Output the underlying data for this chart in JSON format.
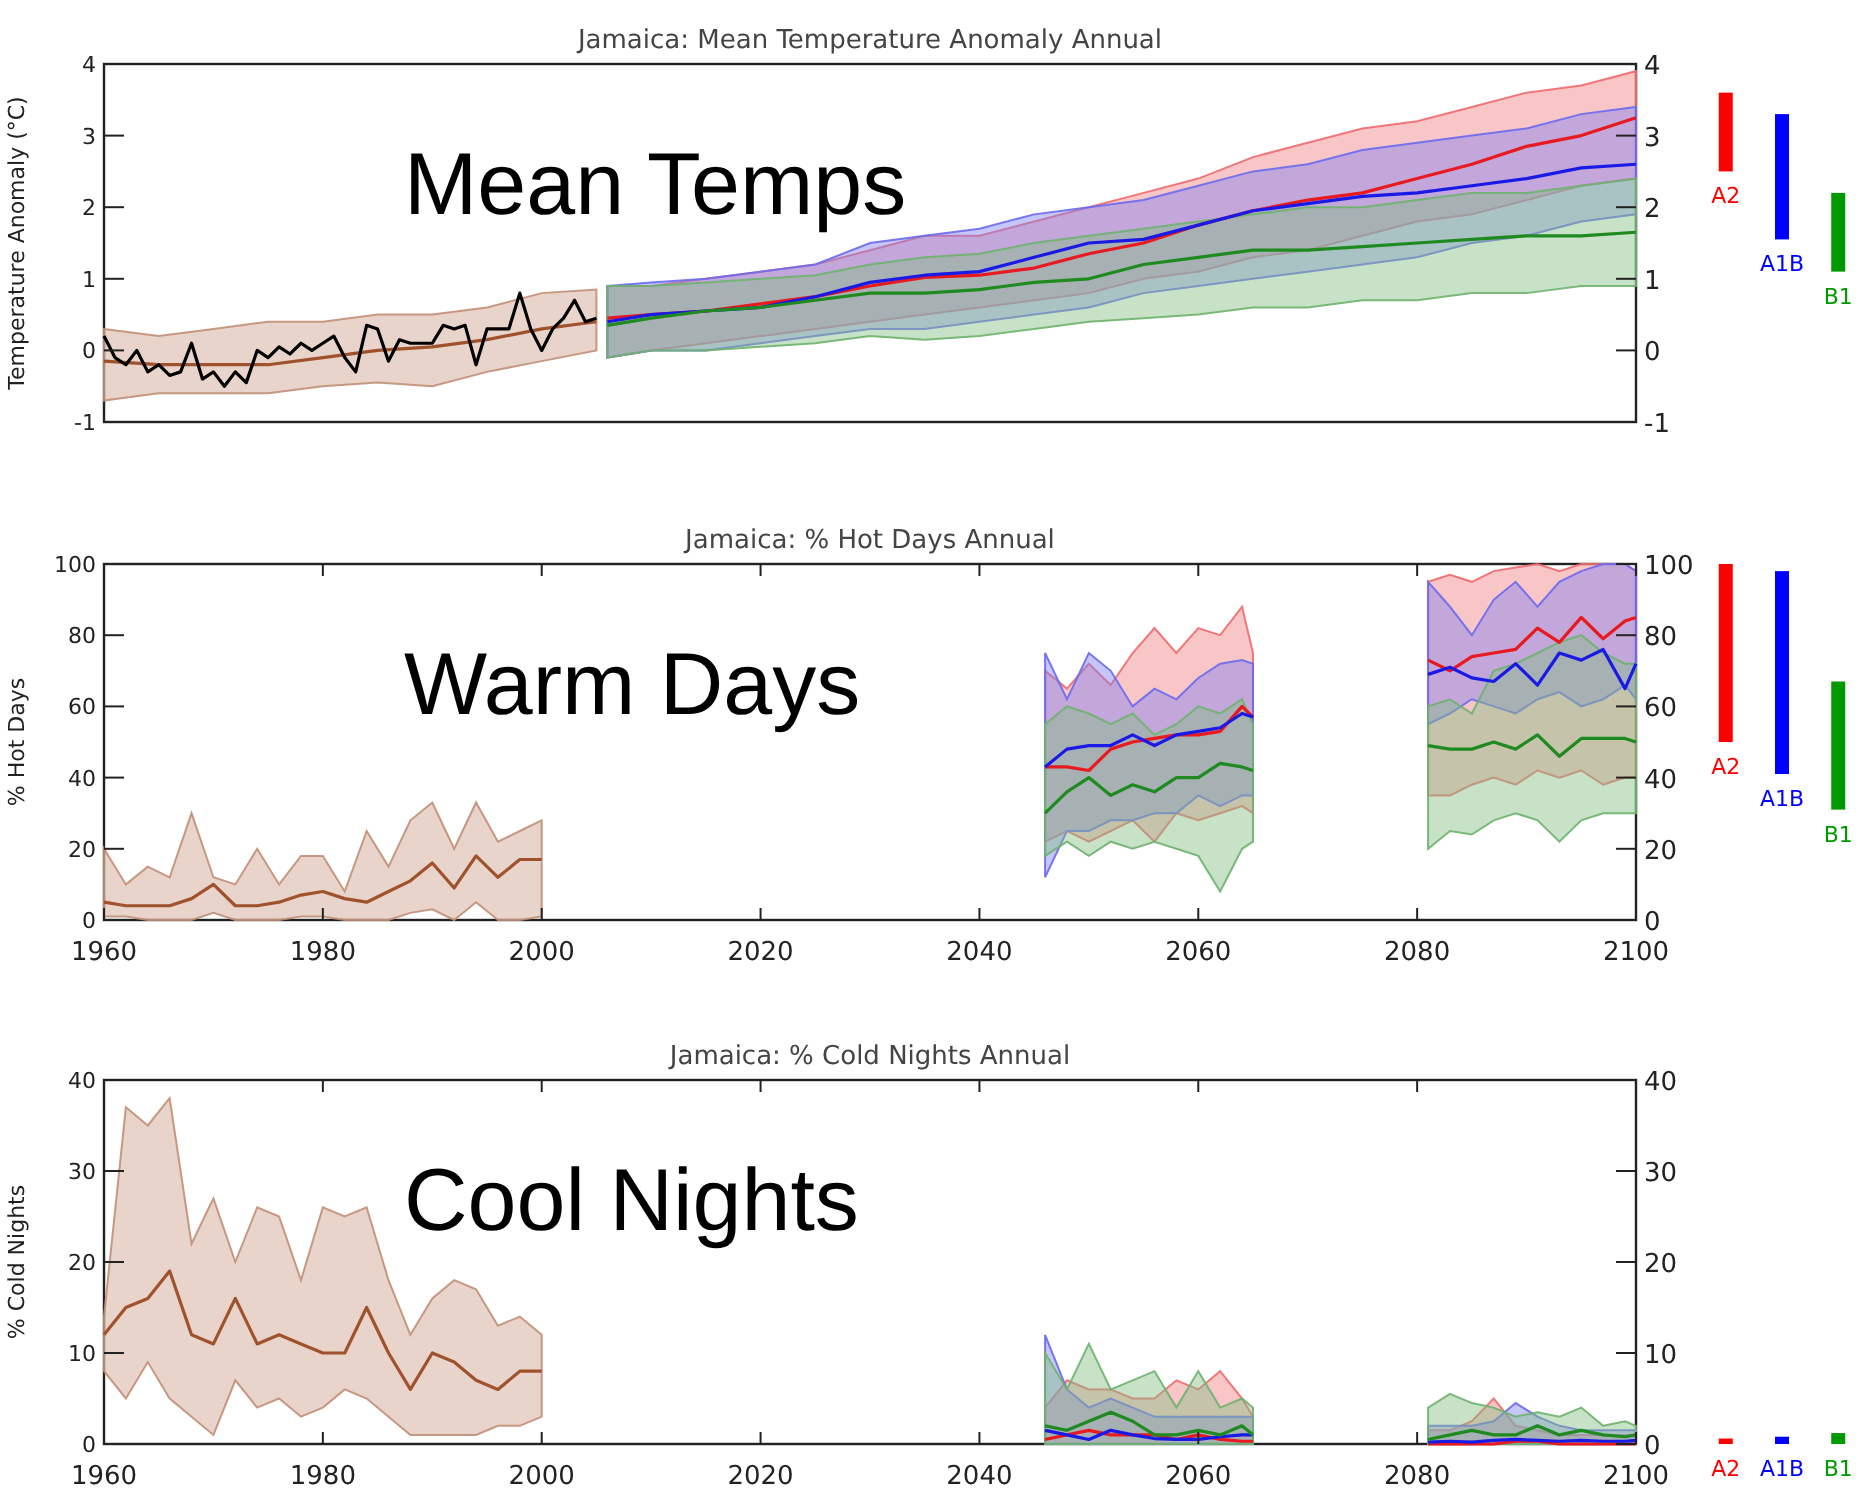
{
  "chart_data": [
    {
      "type": "line",
      "title": "Jamaica: Mean Temperature Anomaly Annual",
      "ylabel": "Temperature Anomaly (°C)",
      "annotations": [
        "Mean Temps"
      ],
      "xlim": [
        1960,
        2100
      ],
      "ylim": [
        -1,
        4
      ],
      "yticks": [
        -1,
        0,
        1,
        2,
        3,
        4
      ],
      "y2lim": [
        -1,
        4
      ],
      "y2ticks": [
        -1,
        0,
        1,
        2,
        3,
        4
      ],
      "tick_labels": "y",
      "series": [
        {
          "color": "#a0522d",
          "x": [
            1960,
            1965,
            1970,
            1975,
            1980,
            1985,
            1990,
            1995,
            2000,
            2005
          ],
          "values": [
            -0.15,
            -0.2,
            -0.2,
            -0.2,
            -0.1,
            0.0,
            0.05,
            0.15,
            0.3,
            0.4
          ],
          "upper": [
            0.3,
            0.2,
            0.3,
            0.4,
            0.4,
            0.5,
            0.5,
            0.6,
            0.8,
            0.85
          ],
          "lower": [
            -0.7,
            -0.6,
            -0.6,
            -0.6,
            -0.5,
            -0.45,
            -0.5,
            -0.3,
            -0.15,
            0.0
          ]
        },
        {
          "color": "#000000",
          "x": [
            1960,
            1961,
            1962,
            1963,
            1964,
            1965,
            1966,
            1967,
            1968,
            1969,
            1970,
            1971,
            1972,
            1973,
            1974,
            1975,
            1976,
            1977,
            1978,
            1979,
            1980,
            1981,
            1982,
            1983,
            1984,
            1985,
            1986,
            1987,
            1988,
            1989,
            1990,
            1991,
            1992,
            1993,
            1994,
            1995,
            1996,
            1997,
            1998,
            1999,
            2000,
            2001,
            2002,
            2003,
            2004,
            2005
          ],
          "values": [
            0.2,
            -0.1,
            -0.2,
            0.0,
            -0.3,
            -0.2,
            -0.35,
            -0.3,
            0.1,
            -0.4,
            -0.3,
            -0.5,
            -0.3,
            -0.45,
            0.0,
            -0.1,
            0.05,
            -0.05,
            0.1,
            0.0,
            0.1,
            0.2,
            -0.1,
            -0.3,
            0.35,
            0.3,
            -0.15,
            0.15,
            0.1,
            0.1,
            0.1,
            0.35,
            0.3,
            0.35,
            -0.2,
            0.3,
            0.3,
            0.3,
            0.8,
            0.3,
            0.0,
            0.3,
            0.45,
            0.7,
            0.4,
            0.45
          ]
        },
        {
          "color": "#e8191f",
          "x": [
            2006,
            2010,
            2015,
            2020,
            2025,
            2030,
            2035,
            2040,
            2045,
            2050,
            2055,
            2060,
            2065,
            2070,
            2075,
            2080,
            2085,
            2090,
            2095,
            2100
          ],
          "values": [
            0.45,
            0.5,
            0.55,
            0.65,
            0.75,
            0.9,
            1.02,
            1.05,
            1.15,
            1.35,
            1.5,
            1.75,
            1.95,
            2.1,
            2.2,
            2.4,
            2.6,
            2.85,
            3.0,
            3.25
          ],
          "upper": [
            0.9,
            0.9,
            1.0,
            1.1,
            1.2,
            1.4,
            1.6,
            1.6,
            1.8,
            2.0,
            2.2,
            2.4,
            2.7,
            2.9,
            3.1,
            3.2,
            3.4,
            3.6,
            3.7,
            3.9
          ],
          "lower": [
            -0.1,
            0.0,
            0.1,
            0.2,
            0.3,
            0.4,
            0.5,
            0.6,
            0.7,
            0.8,
            1.0,
            1.1,
            1.3,
            1.4,
            1.6,
            1.8,
            1.9,
            2.1,
            2.3,
            2.4
          ]
        },
        {
          "color": "#1a1ae6",
          "x": [
            2006,
            2010,
            2015,
            2020,
            2025,
            2030,
            2035,
            2040,
            2045,
            2050,
            2055,
            2060,
            2065,
            2070,
            2075,
            2080,
            2085,
            2090,
            2095,
            2100
          ],
          "values": [
            0.4,
            0.5,
            0.55,
            0.6,
            0.75,
            0.95,
            1.05,
            1.1,
            1.3,
            1.5,
            1.55,
            1.75,
            1.95,
            2.05,
            2.15,
            2.2,
            2.3,
            2.4,
            2.55,
            2.6
          ],
          "upper": [
            0.9,
            0.95,
            1.0,
            1.1,
            1.2,
            1.5,
            1.6,
            1.7,
            1.9,
            2.0,
            2.1,
            2.3,
            2.5,
            2.6,
            2.8,
            2.9,
            3.0,
            3.1,
            3.3,
            3.4
          ],
          "lower": [
            -0.1,
            0.0,
            0.0,
            0.1,
            0.2,
            0.3,
            0.3,
            0.4,
            0.5,
            0.6,
            0.8,
            0.9,
            1.0,
            1.1,
            1.2,
            1.3,
            1.5,
            1.6,
            1.8,
            1.9
          ]
        },
        {
          "color": "#1f8a1f",
          "x": [
            2006,
            2010,
            2015,
            2020,
            2025,
            2030,
            2035,
            2040,
            2045,
            2050,
            2055,
            2060,
            2065,
            2070,
            2075,
            2080,
            2085,
            2090,
            2095,
            2100
          ],
          "values": [
            0.35,
            0.45,
            0.55,
            0.6,
            0.7,
            0.8,
            0.8,
            0.85,
            0.95,
            1.0,
            1.2,
            1.3,
            1.4,
            1.4,
            1.45,
            1.5,
            1.55,
            1.6,
            1.6,
            1.65
          ],
          "upper": [
            0.9,
            0.9,
            0.95,
            1.0,
            1.05,
            1.2,
            1.3,
            1.35,
            1.5,
            1.6,
            1.7,
            1.8,
            1.9,
            2.0,
            2.0,
            2.1,
            2.2,
            2.2,
            2.3,
            2.4
          ],
          "lower": [
            -0.1,
            0.0,
            0.0,
            0.05,
            0.1,
            0.2,
            0.15,
            0.2,
            0.3,
            0.4,
            0.45,
            0.5,
            0.6,
            0.6,
            0.7,
            0.7,
            0.8,
            0.8,
            0.9,
            0.9
          ]
        }
      ]
    },
    {
      "type": "bar",
      "categories": [
        "A2",
        "A1B",
        "B1"
      ],
      "values": [
        1.1,
        1.75,
        1.1
      ],
      "base": [
        2.5,
        1.55,
        1.1
      ],
      "colors": [
        "#ff0000",
        "#0000ff",
        "#009900"
      ],
      "ylim": [
        -1,
        4
      ],
      "tick_labels": false
    },
    {
      "type": "line",
      "title": "Jamaica: % Hot Days Annual",
      "ylabel": "% Hot Days",
      "annotations": [
        "Warm Days"
      ],
      "xlim": [
        1960,
        2100
      ],
      "xticks": [
        1960,
        1980,
        2000,
        2020,
        2040,
        2060,
        2080,
        2100
      ],
      "ylim": [
        0,
        100
      ],
      "yticks": [
        0,
        20,
        40,
        60,
        80,
        100
      ],
      "y2lim": [
        0,
        100
      ],
      "y2ticks": [
        0,
        20,
        40,
        60,
        80,
        100
      ],
      "series": [
        {
          "color": "#a0522d",
          "x": [
            1960,
            1962,
            1964,
            1966,
            1968,
            1970,
            1972,
            1974,
            1976,
            1978,
            1980,
            1982,
            1984,
            1986,
            1988,
            1990,
            1992,
            1994,
            1996,
            1998,
            2000
          ],
          "values": [
            5,
            4,
            4,
            4,
            6,
            10,
            4,
            4,
            5,
            7,
            8,
            6,
            5,
            8,
            11,
            16,
            9,
            18,
            12,
            17,
            17
          ],
          "upper": [
            20,
            10,
            15,
            12,
            30,
            12,
            10,
            20,
            10,
            18,
            18,
            8,
            25,
            15,
            28,
            33,
            20,
            33,
            22,
            25,
            28
          ],
          "lower": [
            1,
            1,
            0,
            0,
            0,
            2,
            0,
            0,
            0,
            1,
            1,
            0,
            0,
            0,
            2,
            3,
            0,
            5,
            0,
            0,
            1
          ]
        },
        {
          "color": "#e8191f",
          "x": [
            2046,
            2048,
            2050,
            2052,
            2054,
            2056,
            2058,
            2060,
            2062,
            2064,
            2065,
            2072,
            2081,
            2083,
            2085,
            2087,
            2089,
            2091,
            2093,
            2095,
            2097,
            2099,
            2100
          ],
          "values": [
            43,
            43,
            42,
            48,
            50,
            51,
            52,
            52,
            53,
            60,
            57,
            null,
            73,
            70,
            74,
            75,
            76,
            82,
            78,
            85,
            79,
            84,
            85
          ],
          "upper": [
            70,
            65,
            72,
            66,
            75,
            82,
            75,
            82,
            80,
            88,
            75,
            null,
            95,
            97,
            95,
            98,
            99,
            100,
            98,
            100,
            100,
            100,
            98
          ],
          "lower": [
            22,
            25,
            22,
            25,
            28,
            22,
            30,
            28,
            30,
            32,
            30,
            null,
            35,
            35,
            38,
            40,
            38,
            42,
            40,
            42,
            38,
            40,
            40
          ]
        },
        {
          "color": "#1a1ae6",
          "x": [
            2046,
            2048,
            2050,
            2052,
            2054,
            2056,
            2058,
            2060,
            2062,
            2064,
            2065,
            2072,
            2081,
            2083,
            2085,
            2087,
            2089,
            2091,
            2093,
            2095,
            2097,
            2099,
            2100
          ],
          "values": [
            43,
            48,
            49,
            49,
            52,
            49,
            52,
            53,
            54,
            58,
            57,
            null,
            69,
            71,
            68,
            67,
            72,
            66,
            75,
            73,
            76,
            65,
            72
          ],
          "upper": [
            75,
            62,
            75,
            70,
            60,
            65,
            62,
            68,
            72,
            73,
            72,
            null,
            95,
            88,
            80,
            90,
            95,
            88,
            95,
            98,
            100,
            100,
            98
          ],
          "lower": [
            12,
            25,
            25,
            28,
            28,
            30,
            30,
            35,
            32,
            35,
            35,
            null,
            55,
            58,
            62,
            60,
            58,
            62,
            64,
            60,
            62,
            66,
            62
          ]
        },
        {
          "color": "#1f8a1f",
          "x": [
            2046,
            2048,
            2050,
            2052,
            2054,
            2056,
            2058,
            2060,
            2062,
            2064,
            2065,
            2072,
            2081,
            2083,
            2085,
            2087,
            2089,
            2091,
            2093,
            2095,
            2097,
            2099,
            2100
          ],
          "values": [
            30,
            36,
            40,
            35,
            38,
            36,
            40,
            40,
            44,
            43,
            42,
            null,
            49,
            48,
            48,
            50,
            48,
            52,
            46,
            51,
            51,
            51,
            50
          ],
          "upper": [
            55,
            60,
            58,
            55,
            58,
            52,
            55,
            60,
            58,
            62,
            55,
            null,
            60,
            62,
            58,
            70,
            72,
            75,
            78,
            80,
            75,
            72,
            72
          ],
          "lower": [
            18,
            22,
            18,
            22,
            20,
            22,
            20,
            18,
            8,
            20,
            22,
            null,
            20,
            25,
            24,
            28,
            30,
            28,
            22,
            28,
            30,
            30,
            30
          ]
        }
      ]
    },
    {
      "type": "bar",
      "categories": [
        "A2",
        "A1B",
        "B1"
      ],
      "values": [
        50,
        57,
        36
      ],
      "base": [
        50,
        41,
        31
      ],
      "colors": [
        "#ff0000",
        "#0000ff",
        "#009900"
      ],
      "ylim": [
        0,
        100
      ],
      "tick_labels": false
    },
    {
      "type": "line",
      "title": "Jamaica: % Cold Nights Annual",
      "ylabel": "% Cold Nights",
      "annotations": [
        "Cool Nights"
      ],
      "xlim": [
        1960,
        2100
      ],
      "xticks": [
        1960,
        1980,
        2000,
        2020,
        2040,
        2060,
        2080,
        2100
      ],
      "ylim": [
        0,
        40
      ],
      "yticks": [
        0,
        10,
        20,
        30,
        40
      ],
      "y2lim": [
        0,
        40
      ],
      "y2ticks": [
        0,
        10,
        20,
        30,
        40
      ],
      "series": [
        {
          "color": "#a0522d",
          "x": [
            1960,
            1962,
            1964,
            1966,
            1968,
            1970,
            1972,
            1974,
            1976,
            1978,
            1980,
            1982,
            1984,
            1986,
            1988,
            1990,
            1992,
            1994,
            1996,
            1998,
            2000
          ],
          "values": [
            12,
            15,
            16,
            19,
            12,
            11,
            16,
            11,
            12,
            11,
            10,
            10,
            15,
            10,
            6,
            10,
            9,
            7,
            6,
            8,
            8
          ],
          "upper": [
            14,
            37,
            35,
            38,
            22,
            27,
            20,
            26,
            25,
            18,
            26,
            25,
            26,
            18,
            12,
            16,
            18,
            17,
            13,
            14,
            12
          ],
          "lower": [
            8,
            5,
            9,
            5,
            3,
            1,
            7,
            4,
            5,
            3,
            4,
            6,
            5,
            3,
            1,
            1,
            1,
            1,
            2,
            2,
            3
          ]
        },
        {
          "color": "#e8191f",
          "x": [
            2046,
            2048,
            2050,
            2052,
            2054,
            2056,
            2058,
            2060,
            2062,
            2064,
            2065,
            2072,
            2081,
            2083,
            2085,
            2087,
            2089,
            2091,
            2093,
            2095,
            2097,
            2099,
            2100
          ],
          "values": [
            0.5,
            1,
            1.5,
            1,
            1,
            1,
            0.5,
            1,
            0.5,
            0.3,
            0.3,
            null,
            0,
            0,
            0,
            0,
            0.3,
            0.3,
            0,
            0,
            0,
            0,
            0
          ],
          "upper": [
            4,
            7,
            6,
            6,
            5,
            5,
            7,
            6,
            8,
            5,
            3,
            null,
            1.5,
            1.5,
            2.5,
            5,
            2,
            1.5,
            1,
            1,
            1,
            1,
            1
          ],
          "lower": [
            0,
            0,
            0,
            0,
            0,
            0,
            0,
            0,
            0,
            0,
            0,
            null,
            0,
            0,
            0,
            0,
            0,
            0,
            0,
            0,
            0,
            0,
            0
          ]
        },
        {
          "color": "#1a1ae6",
          "x": [
            2046,
            2048,
            2050,
            2052,
            2054,
            2056,
            2058,
            2060,
            2062,
            2064,
            2065,
            2072,
            2081,
            2083,
            2085,
            2087,
            2089,
            2091,
            2093,
            2095,
            2097,
            2099,
            2100
          ],
          "values": [
            1.5,
            1,
            0.5,
            1.5,
            1,
            0.6,
            0.5,
            0.5,
            0.8,
            1,
            1,
            null,
            0.2,
            0.3,
            0.2,
            0.4,
            0.5,
            0.4,
            0.3,
            0.4,
            0.3,
            0.3,
            0.4
          ],
          "upper": [
            12,
            6,
            4,
            5,
            4,
            3,
            3,
            3,
            3,
            3,
            3,
            null,
            2,
            2,
            2,
            2.5,
            4.5,
            3,
            2,
            1.5,
            1.5,
            1.5,
            1.5
          ],
          "lower": [
            0,
            0,
            0,
            0,
            0,
            0,
            0,
            0,
            0,
            0,
            0,
            null,
            0,
            0,
            0,
            0,
            0,
            0,
            0,
            0,
            0,
            0,
            0
          ]
        },
        {
          "color": "#1f8a1f",
          "x": [
            2046,
            2048,
            2050,
            2052,
            2054,
            2056,
            2058,
            2060,
            2062,
            2064,
            2065,
            2072,
            2081,
            2083,
            2085,
            2087,
            2089,
            2091,
            2093,
            2095,
            2097,
            2099,
            2100
          ],
          "values": [
            2,
            1.5,
            2.5,
            3.5,
            2.5,
            1,
            1,
            1.5,
            1,
            2,
            1,
            null,
            0.5,
            1,
            1.5,
            1,
            1,
            2,
            1,
            1.5,
            1,
            0.8,
            1
          ],
          "upper": [
            10,
            6,
            11,
            6,
            7,
            8,
            4,
            8,
            4,
            5,
            4,
            null,
            4,
            5.5,
            4.5,
            4,
            3,
            3.5,
            3,
            4,
            2,
            2.5,
            2
          ],
          "lower": [
            0,
            0,
            0,
            0,
            0,
            0,
            0,
            0,
            0,
            0,
            0,
            null,
            0,
            0,
            0,
            0,
            0,
            0,
            0,
            0,
            0,
            0,
            0
          ]
        }
      ]
    },
    {
      "type": "bar",
      "categories": [
        "A2",
        "A1B",
        "B1"
      ],
      "values": [
        0.6,
        0.8,
        1.2
      ],
      "base": [
        0,
        0,
        0
      ],
      "colors": [
        "#ff0000",
        "#0000ff",
        "#009900"
      ],
      "ylim": [
        0,
        40
      ],
      "tick_labels": false
    }
  ]
}
